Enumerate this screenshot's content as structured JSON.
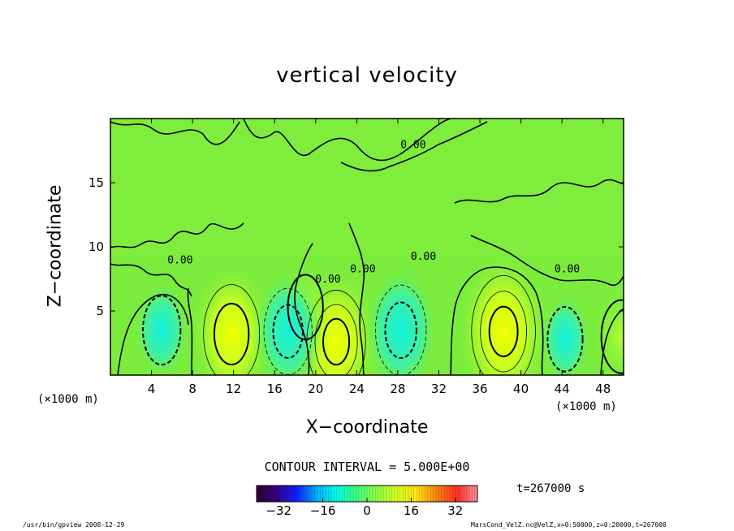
{
  "chart_data": {
    "type": "heatmap",
    "title": "vertical velocity",
    "xlabel": "X−coordinate",
    "ylabel": "Z−coordinate",
    "x_unit_left": "(×1000 m)",
    "x_unit_right": "(×1000 m)",
    "xlim": [
      0,
      50
    ],
    "ylim": [
      0,
      20
    ],
    "x_ticks": [
      4,
      8,
      12,
      16,
      20,
      24,
      28,
      32,
      36,
      40,
      44,
      48
    ],
    "y_ticks": [
      5,
      10,
      15
    ],
    "contour_labels": [
      {
        "text": "0.00",
        "x": 29.5,
        "y": 17.7
      },
      {
        "text": "0.00",
        "x": 6.8,
        "y": 8.7
      },
      {
        "text": "0.00",
        "x": 21.2,
        "y": 7.2
      },
      {
        "text": "0.00",
        "x": 24.6,
        "y": 8.0
      },
      {
        "text": "0.00",
        "x": 30.5,
        "y": 9.0
      },
      {
        "text": "0.00",
        "x": 44.5,
        "y": 8.0
      }
    ],
    "features": [
      {
        "kind": "updraft",
        "x": 11.8,
        "z": 3.2,
        "peak": 14
      },
      {
        "kind": "updraft",
        "x": 22.0,
        "z": 2.6,
        "peak": 15
      },
      {
        "kind": "updraft",
        "x": 38.3,
        "z": 3.4,
        "peak": 17
      },
      {
        "kind": "updraft",
        "x": 19.0,
        "z": 5.3,
        "peak": 6
      },
      {
        "kind": "updraft",
        "x": 49.8,
        "z": 3.0,
        "peak": 8
      },
      {
        "kind": "downdraft",
        "x": 5.0,
        "z": 3.5,
        "peak": -7
      },
      {
        "kind": "downdraft",
        "x": 17.3,
        "z": 3.4,
        "peak": -11
      },
      {
        "kind": "downdraft",
        "x": 28.3,
        "z": 3.5,
        "peak": -12
      },
      {
        "kind": "downdraft",
        "x": 44.3,
        "z": 2.8,
        "peak": -6
      }
    ],
    "colorbar": {
      "ticks": [
        -32,
        -16,
        0,
        16,
        32
      ],
      "tick_labels": [
        "−32",
        "−16",
        "0",
        "16",
        "32"
      ],
      "range": [
        -40,
        40
      ],
      "colors": [
        "#2a0030",
        "#3a008a",
        "#1020ff",
        "#00b0ff",
        "#00ffe0",
        "#40ff80",
        "#90ff40",
        "#d8ff20",
        "#ffe010",
        "#ff8010",
        "#ff3020",
        "#ff90a0"
      ]
    },
    "grid": false
  },
  "contour_interval": "CONTOUR INTERVAL = 5.000E+00",
  "time": "t=267000 s",
  "footer_left": "/usr/bin/gpview  2008-12-29",
  "footer_right": "MarsCond_VelZ.nc@VelZ,x=0:50000,z=0:20000,t=267000"
}
